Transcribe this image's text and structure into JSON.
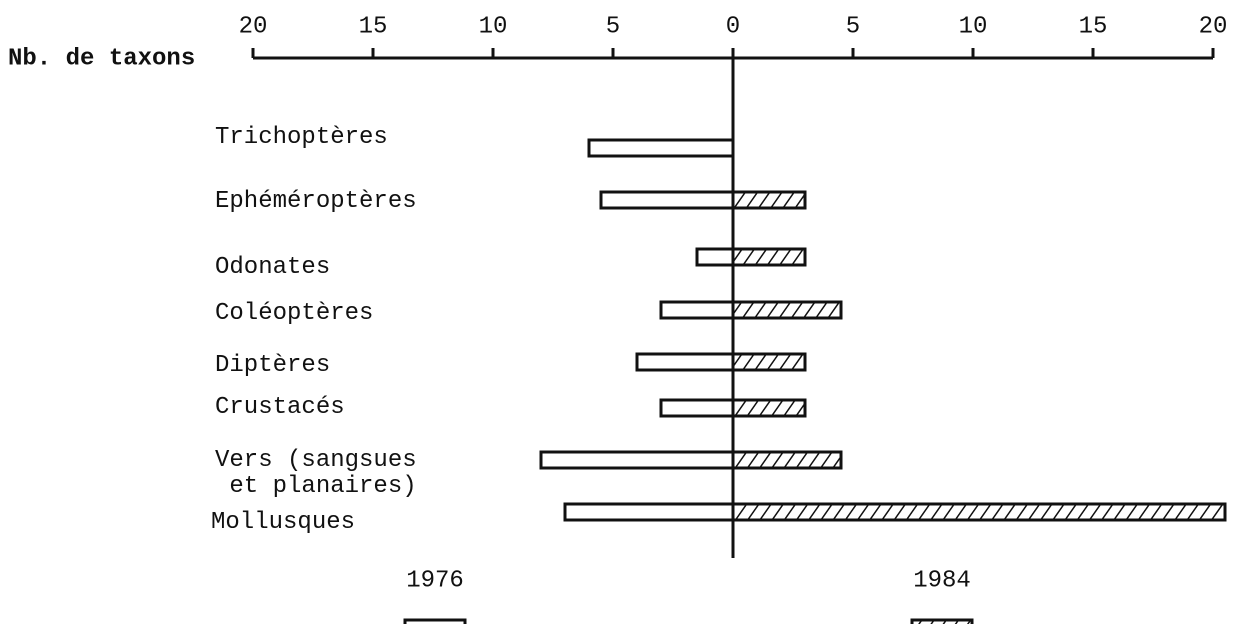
{
  "chart_data": {
    "type": "butterfly-bar",
    "xlabel": "Nb. de taxons",
    "categories": [
      "Trichoptères",
      "Ephéméroptères",
      "Odonates",
      "Coléoptères",
      "Diptères",
      "Crustacés",
      "Vers (sangsues\n et planaires)",
      "Mollusques"
    ],
    "series": [
      {
        "name": "1976",
        "color": "#ffffff",
        "hatch": false,
        "values": [
          -6,
          -5.5,
          -1.5,
          -3,
          -4,
          -3,
          -8,
          -7
        ]
      },
      {
        "name": "1984",
        "color": "#ffffff",
        "hatch": true,
        "values": [
          0,
          3,
          3,
          4.5,
          3,
          3,
          4.5,
          20.5
        ]
      }
    ],
    "xlim": [
      -20,
      20
    ],
    "xticks": [
      {
        "value": -20,
        "label": "20"
      },
      {
        "value": -15,
        "label": "15"
      },
      {
        "value": -10,
        "label": "10"
      },
      {
        "value": -5,
        "label": "5"
      },
      0,
      5,
      10,
      15,
      20
    ]
  }
}
